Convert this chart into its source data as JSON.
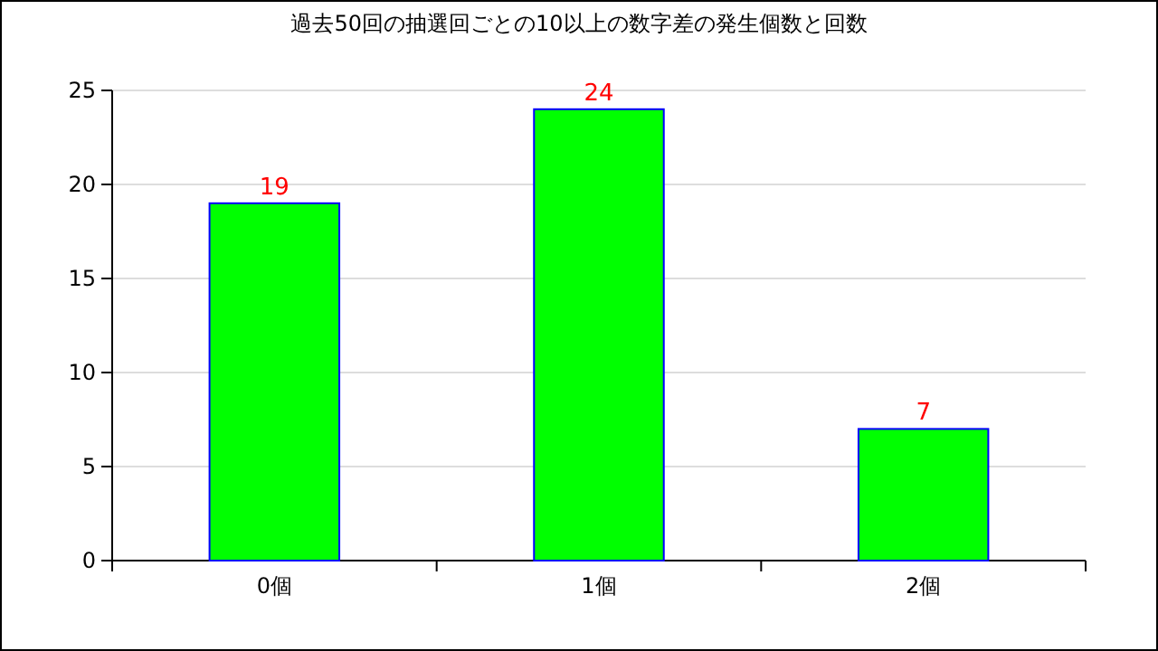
{
  "chart_data": {
    "type": "bar",
    "title": "過去50回の抽選回ごとの10以上の数字差の発生個数と回数",
    "categories": [
      "0個",
      "1個",
      "2個"
    ],
    "series": [
      {
        "color": "#00ff00",
        "values": [
          19,
          24,
          7
        ]
      }
    ],
    "ylim": [
      0,
      25
    ],
    "yticks": [
      0,
      5,
      10,
      15,
      20,
      25
    ],
    "grid": "y",
    "data_labels": true
  }
}
